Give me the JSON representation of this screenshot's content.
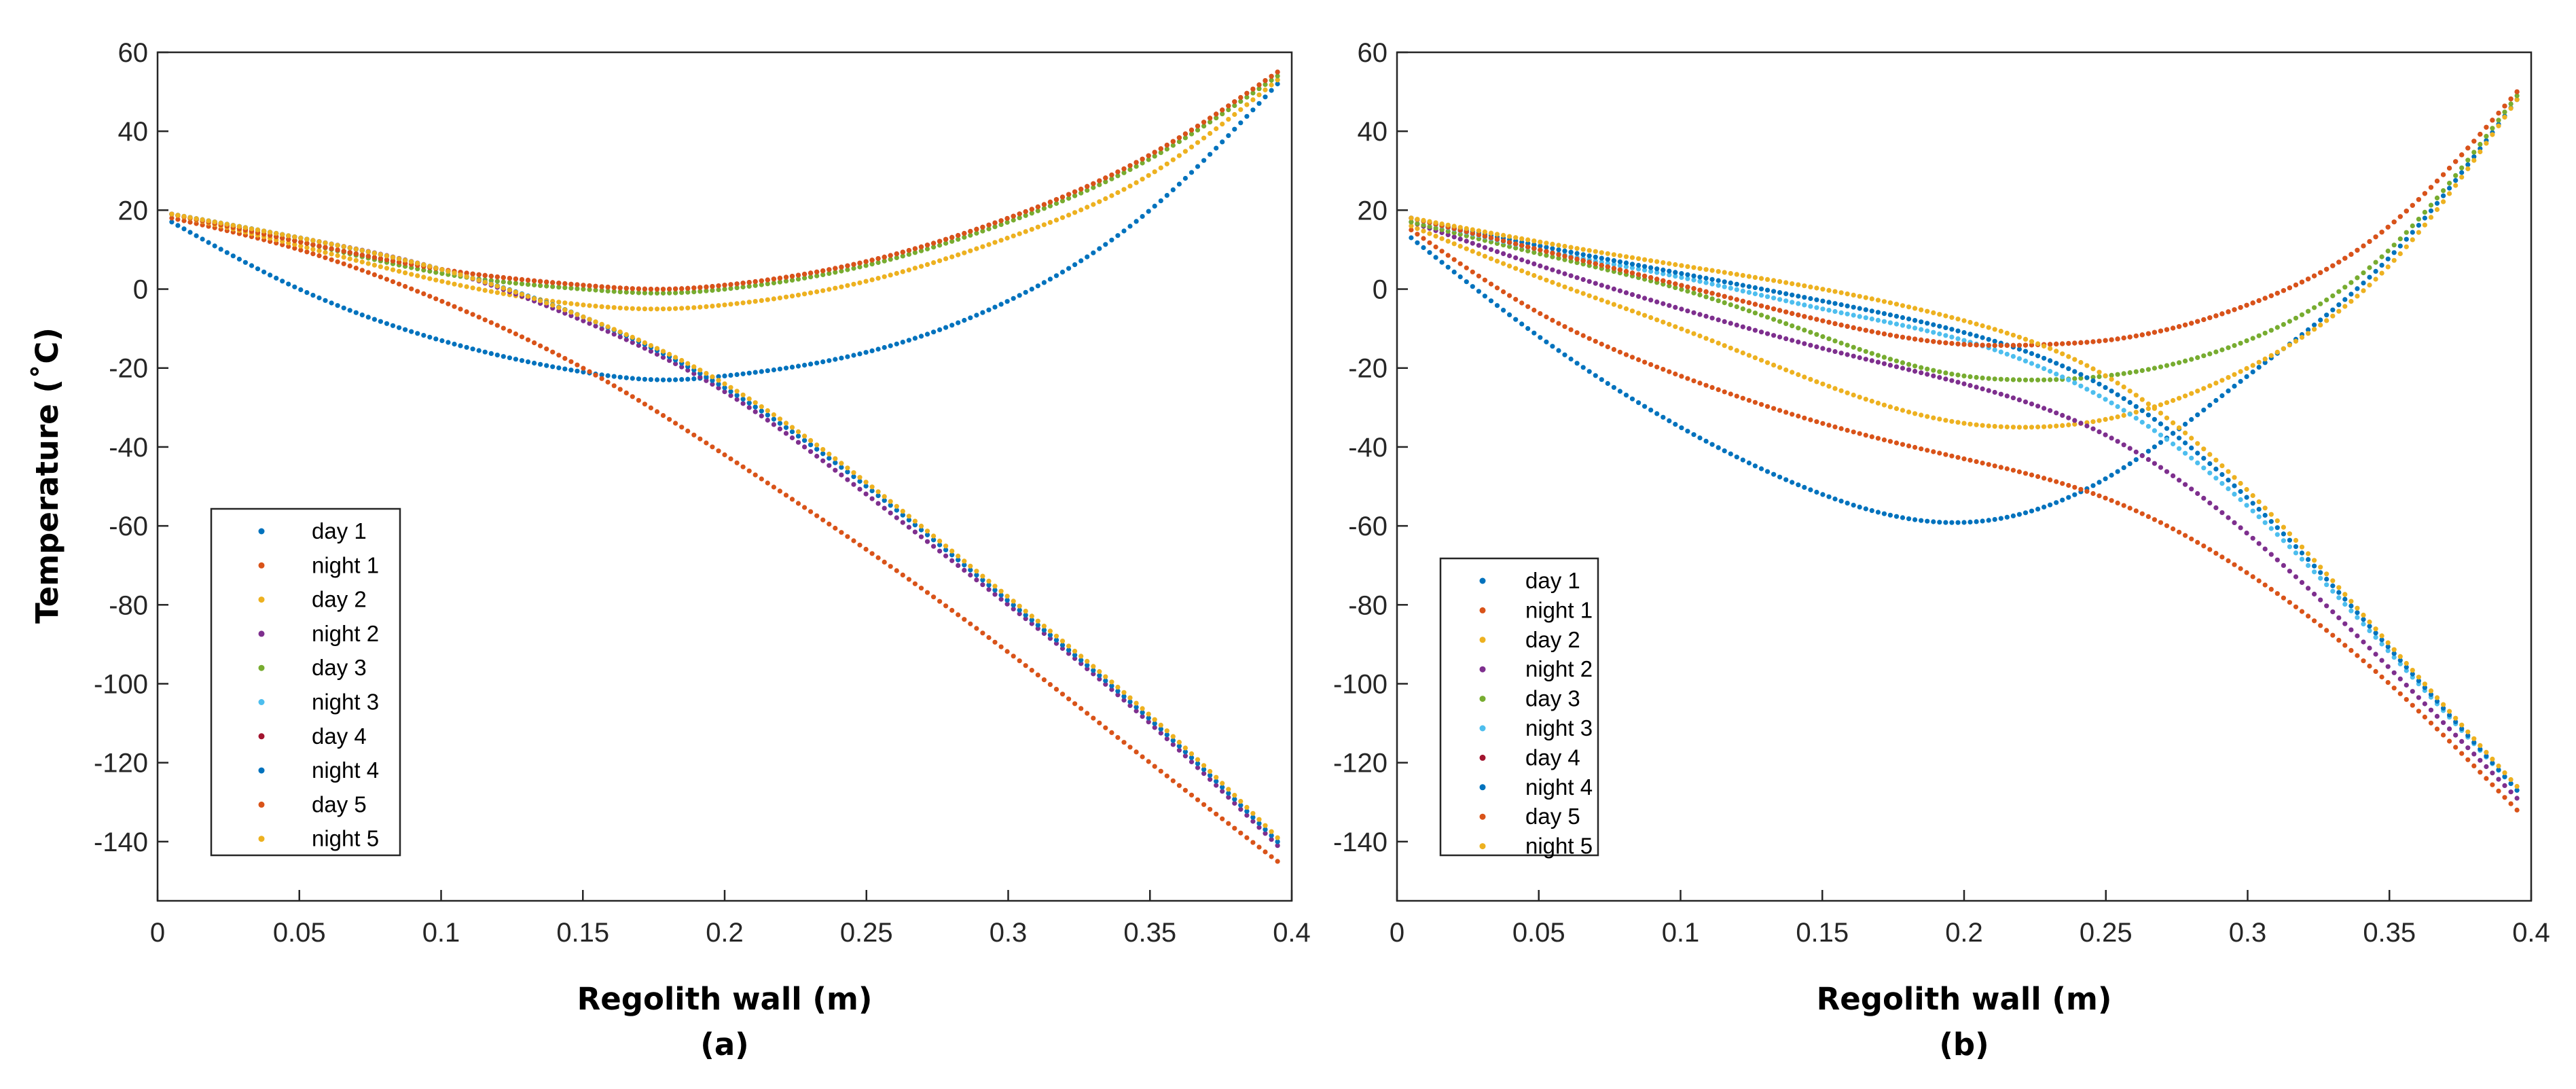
{
  "colors": [
    "#0072BD",
    "#D95319",
    "#EDB120",
    "#7E2F8E",
    "#77AC30",
    "#4DBEEE",
    "#A2142F",
    "#0072BD",
    "#D95319",
    "#EDB120"
  ],
  "ylabel": "Temperature (˚C)",
  "chart_data": [
    {
      "type": "scatter",
      "panel_label": "(a)",
      "xlabel": "Regolith wall (m)",
      "ylabel": "Temperature (˚C)",
      "xlim": [
        0,
        0.4
      ],
      "ylim": [
        -155,
        60
      ],
      "xticks": [
        0,
        0.05,
        0.1,
        0.15,
        0.2,
        0.25,
        0.3,
        0.35,
        0.4
      ],
      "yticks": [
        60,
        40,
        20,
        0,
        -20,
        -40,
        -60,
        -80,
        -100,
        -120,
        -140
      ],
      "xtick_labels": [
        "0",
        "0.05",
        "0.1",
        "0.15",
        "0.2",
        "0.25",
        "0.3",
        "0.35",
        "0.4"
      ],
      "ytick_labels": [
        "60",
        "40",
        "20",
        "0",
        "-20",
        "-40",
        "-60",
        "-80",
        "-100",
        "-120",
        "-140"
      ],
      "legend_position": "lower-left",
      "series": [
        {
          "name": "day 1",
          "x": [
            0.005,
            0.05,
            0.1,
            0.15,
            0.18,
            0.2,
            0.25,
            0.3,
            0.35,
            0.395
          ],
          "y": [
            17,
            0,
            -13,
            -21,
            -23,
            -22,
            -16,
            -3,
            20,
            52
          ]
        },
        {
          "name": "night 1",
          "x": [
            0.005,
            0.05,
            0.1,
            0.15,
            0.2,
            0.25,
            0.3,
            0.35,
            0.395
          ],
          "y": [
            18,
            10,
            -3,
            -20,
            -42,
            -66,
            -92,
            -120,
            -145
          ]
        },
        {
          "name": "day 2",
          "x": [
            0.005,
            0.05,
            0.1,
            0.15,
            0.18,
            0.2,
            0.25,
            0.3,
            0.35,
            0.395
          ],
          "y": [
            19,
            11,
            2,
            -4,
            -5,
            -4,
            2,
            13,
            29,
            53
          ]
        },
        {
          "name": "night 2",
          "x": [
            0.005,
            0.05,
            0.1,
            0.15,
            0.2,
            0.25,
            0.3,
            0.35,
            0.395
          ],
          "y": [
            19,
            13,
            5,
            -8,
            -26,
            -52,
            -80,
            -110,
            -141
          ]
        },
        {
          "name": "day 3",
          "x": [
            0.005,
            0.05,
            0.1,
            0.15,
            0.18,
            0.2,
            0.25,
            0.3,
            0.35,
            0.395
          ],
          "y": [
            19,
            12,
            4,
            0,
            -1,
            0,
            6,
            17,
            33,
            54
          ]
        },
        {
          "name": "night 3",
          "x": [
            0.005,
            0.05,
            0.1,
            0.15,
            0.2,
            0.25,
            0.3,
            0.35,
            0.395
          ],
          "y": [
            19,
            13,
            5,
            -7,
            -25,
            -50,
            -79,
            -109,
            -140
          ]
        },
        {
          "name": "day 4",
          "x": [
            0.005,
            0.05,
            0.1,
            0.15,
            0.18,
            0.2,
            0.25,
            0.3,
            0.35,
            0.395
          ],
          "y": [
            19,
            12,
            5,
            1,
            0,
            1,
            7,
            18,
            34,
            55
          ]
        },
        {
          "name": "night 4",
          "x": [
            0.005,
            0.05,
            0.1,
            0.15,
            0.2,
            0.25,
            0.3,
            0.35,
            0.395
          ],
          "y": [
            19,
            13,
            5,
            -7,
            -25,
            -50,
            -79,
            -109,
            -140
          ]
        },
        {
          "name": "day 5",
          "x": [
            0.005,
            0.05,
            0.1,
            0.15,
            0.18,
            0.2,
            0.25,
            0.3,
            0.35,
            0.395
          ],
          "y": [
            19,
            12,
            5,
            1,
            0,
            1,
            7,
            18,
            34,
            55
          ]
        },
        {
          "name": "night 5",
          "x": [
            0.005,
            0.05,
            0.1,
            0.15,
            0.2,
            0.25,
            0.3,
            0.35,
            0.395
          ],
          "y": [
            19,
            13,
            5,
            -7,
            -24,
            -49,
            -78,
            -108,
            -139
          ]
        }
      ]
    },
    {
      "type": "scatter",
      "panel_label": "(b)",
      "xlabel": "Regolith wall (m)",
      "ylabel": "",
      "xlim": [
        0,
        0.4
      ],
      "ylim": [
        -155,
        60
      ],
      "xticks": [
        0,
        0.05,
        0.1,
        0.15,
        0.2,
        0.25,
        0.3,
        0.35,
        0.4
      ],
      "yticks": [
        60,
        40,
        20,
        0,
        -20,
        -40,
        -60,
        -80,
        -100,
        -120,
        -140
      ],
      "xtick_labels": [
        "0",
        "0.05",
        "0.1",
        "0.15",
        "0.2",
        "0.25",
        "0.3",
        "0.35",
        "0.4"
      ],
      "ytick_labels": [
        "60",
        "40",
        "20",
        "0",
        "-20",
        "-40",
        "-60",
        "-80",
        "-100",
        "-120",
        "-140"
      ],
      "legend_position": "lower-left",
      "series": [
        {
          "name": "day 1",
          "x": [
            0.005,
            0.05,
            0.1,
            0.15,
            0.19,
            0.22,
            0.25,
            0.3,
            0.35,
            0.395
          ],
          "y": [
            13,
            -12,
            -35,
            -52,
            -59,
            -57,
            -48,
            -22,
            8,
            48
          ]
        },
        {
          "name": "night 1",
          "x": [
            0.005,
            0.05,
            0.1,
            0.15,
            0.2,
            0.25,
            0.3,
            0.35,
            0.395
          ],
          "y": [
            15,
            -6,
            -22,
            -34,
            -43,
            -53,
            -72,
            -100,
            -132
          ]
        },
        {
          "name": "day 2",
          "x": [
            0.005,
            0.05,
            0.1,
            0.15,
            0.2,
            0.22,
            0.25,
            0.3,
            0.35,
            0.395
          ],
          "y": [
            16,
            3,
            -10,
            -24,
            -34,
            -35,
            -33,
            -20,
            6,
            48
          ]
        },
        {
          "name": "night 2",
          "x": [
            0.005,
            0.05,
            0.1,
            0.15,
            0.2,
            0.25,
            0.3,
            0.35,
            0.395
          ],
          "y": [
            17,
            6,
            -5,
            -15,
            -24,
            -37,
            -62,
            -96,
            -129
          ]
        },
        {
          "name": "day 3",
          "x": [
            0.005,
            0.05,
            0.1,
            0.15,
            0.2,
            0.22,
            0.25,
            0.3,
            0.35,
            0.395
          ],
          "y": [
            17,
            9,
            0,
            -12,
            -22,
            -23,
            -22,
            -13,
            10,
            49
          ]
        },
        {
          "name": "night 3",
          "x": [
            0.005,
            0.05,
            0.1,
            0.15,
            0.2,
            0.25,
            0.3,
            0.35,
            0.395
          ],
          "y": [
            18,
            10,
            3,
            -5,
            -13,
            -28,
            -55,
            -92,
            -127
          ]
        },
        {
          "name": "day 4",
          "x": [
            0.005,
            0.05,
            0.1,
            0.15,
            0.2,
            0.23,
            0.25,
            0.3,
            0.35,
            0.395
          ],
          "y": [
            18,
            10,
            1,
            -8,
            -14,
            -14,
            -13,
            -4,
            16,
            50
          ]
        },
        {
          "name": "night 4",
          "x": [
            0.005,
            0.05,
            0.1,
            0.15,
            0.2,
            0.25,
            0.3,
            0.35,
            0.395
          ],
          "y": [
            18,
            11,
            4,
            -3,
            -11,
            -25,
            -53,
            -91,
            -127
          ]
        },
        {
          "name": "day 5",
          "x": [
            0.005,
            0.05,
            0.1,
            0.15,
            0.2,
            0.23,
            0.25,
            0.3,
            0.35,
            0.395
          ],
          "y": [
            18,
            10,
            1,
            -8,
            -14,
            -14,
            -13,
            -4,
            16,
            50
          ]
        },
        {
          "name": "night 5",
          "x": [
            0.005,
            0.05,
            0.1,
            0.15,
            0.2,
            0.25,
            0.3,
            0.35,
            0.395
          ],
          "y": [
            18,
            12,
            6,
            0,
            -8,
            -22,
            -51,
            -90,
            -126
          ]
        }
      ]
    }
  ]
}
